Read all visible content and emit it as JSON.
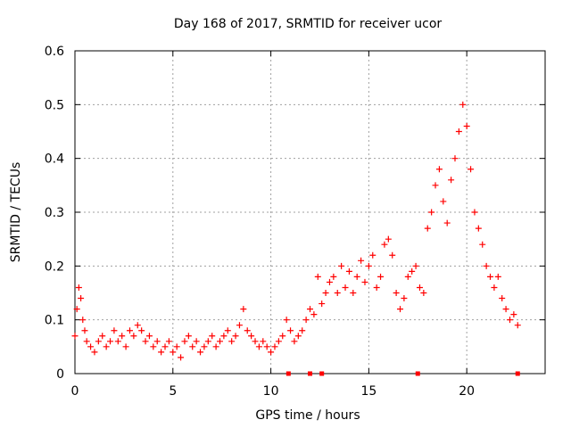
{
  "chart_data": {
    "type": "scatter",
    "title": "Day 168 of 2017, SRMTID for receiver ucor",
    "xlabel": "GPS time / hours",
    "ylabel": "SRMTID / TECUs",
    "xlim": [
      0,
      24
    ],
    "ylim": [
      0,
      0.6
    ],
    "xticks": [
      0,
      5,
      10,
      15,
      20
    ],
    "yticks": [
      0,
      0.1,
      0.2,
      0.3,
      0.4,
      0.5,
      0.6
    ],
    "xtick_labels": [
      "0",
      "5",
      "10",
      "15",
      "20"
    ],
    "ytick_labels": [
      "0",
      "0.1",
      "0.2",
      "0.3",
      "0.4",
      "0.5",
      "0.6"
    ],
    "grid": true,
    "marker": "plus",
    "color": "#ff0000",
    "series": [
      {
        "name": "SRMTID",
        "x": [
          0.0,
          0.1,
          0.2,
          0.3,
          0.4,
          0.5,
          0.6,
          0.8,
          1.0,
          1.2,
          1.4,
          1.6,
          1.8,
          2.0,
          2.2,
          2.4,
          2.6,
          2.8,
          3.0,
          3.2,
          3.4,
          3.6,
          3.8,
          4.0,
          4.2,
          4.4,
          4.6,
          4.8,
          5.0,
          5.2,
          5.4,
          5.6,
          5.8,
          6.0,
          6.2,
          6.4,
          6.6,
          6.8,
          7.0,
          7.2,
          7.4,
          7.6,
          7.8,
          8.0,
          8.2,
          8.4,
          8.6,
          8.8,
          9.0,
          9.2,
          9.4,
          9.6,
          9.8,
          10.0,
          10.2,
          10.4,
          10.6,
          10.8,
          11.0,
          11.2,
          11.4,
          11.6,
          11.8,
          12.0,
          12.2,
          12.4,
          12.6,
          12.8,
          13.0,
          13.2,
          13.4,
          13.6,
          13.8,
          14.0,
          14.2,
          14.4,
          14.6,
          14.8,
          15.0,
          15.2,
          15.4,
          15.6,
          15.8,
          16.0,
          16.2,
          16.4,
          16.6,
          16.8,
          17.0,
          17.2,
          17.4,
          17.6,
          17.8,
          18.0,
          18.2,
          18.4,
          18.6,
          18.8,
          19.0,
          19.2,
          19.4,
          19.6,
          19.8,
          20.0,
          20.2,
          20.4,
          20.6,
          20.8,
          21.0,
          21.2,
          21.4,
          21.6,
          21.8,
          22.0,
          22.2,
          22.4,
          22.6
        ],
        "y": [
          0.07,
          0.12,
          0.16,
          0.14,
          0.1,
          0.08,
          0.06,
          0.05,
          0.04,
          0.06,
          0.07,
          0.05,
          0.06,
          0.08,
          0.06,
          0.07,
          0.05,
          0.08,
          0.07,
          0.09,
          0.08,
          0.06,
          0.07,
          0.05,
          0.06,
          0.04,
          0.05,
          0.06,
          0.04,
          0.05,
          0.03,
          0.06,
          0.07,
          0.05,
          0.06,
          0.04,
          0.05,
          0.06,
          0.07,
          0.05,
          0.06,
          0.07,
          0.08,
          0.06,
          0.07,
          0.09,
          0.12,
          0.08,
          0.07,
          0.06,
          0.05,
          0.06,
          0.05,
          0.04,
          0.05,
          0.06,
          0.07,
          0.1,
          0.08,
          0.06,
          0.07,
          0.08,
          0.1,
          0.12,
          0.11,
          0.18,
          0.13,
          0.15,
          0.17,
          0.18,
          0.15,
          0.2,
          0.16,
          0.19,
          0.15,
          0.18,
          0.21,
          0.17,
          0.2,
          0.22,
          0.16,
          0.18,
          0.24,
          0.25,
          0.22,
          0.15,
          0.12,
          0.14,
          0.18,
          0.19,
          0.2,
          0.16,
          0.15,
          0.27,
          0.3,
          0.35,
          0.38,
          0.32,
          0.28,
          0.36,
          0.4,
          0.45,
          0.5,
          0.46,
          0.38,
          0.3,
          0.27,
          0.24,
          0.2,
          0.18,
          0.16,
          0.18,
          0.14,
          0.12,
          0.1,
          0.11,
          0.09
        ]
      },
      {
        "name": "gaps",
        "x": [
          10.9,
          12.0,
          12.6,
          17.5,
          22.6
        ],
        "y": [
          0,
          0,
          0,
          0,
          0
        ]
      }
    ]
  }
}
